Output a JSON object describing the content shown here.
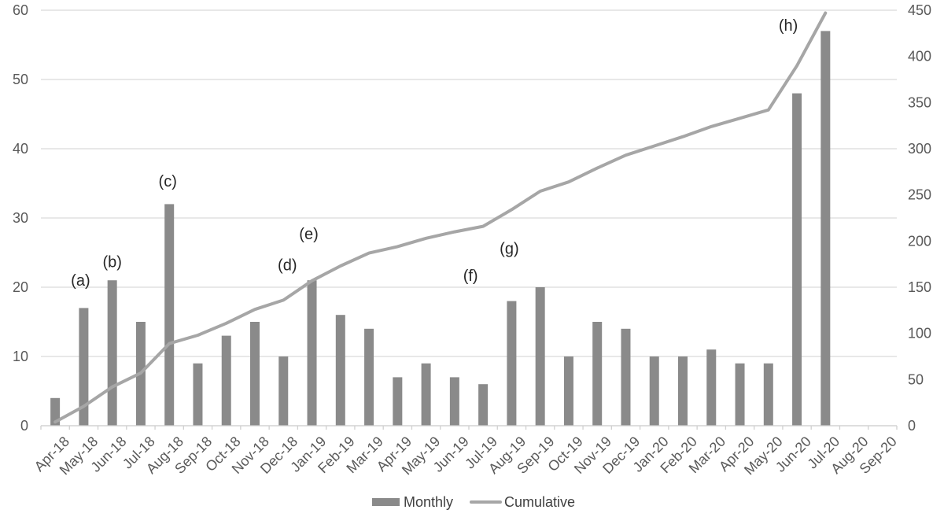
{
  "chart_data": {
    "type": "combo-bar-line",
    "title": "",
    "xlabel": "",
    "ylabel_left": "",
    "ylabel_right": "",
    "grid": true,
    "legend_position": "bottom-center",
    "categories": [
      "Apr-18",
      "May-18",
      "Jun-18",
      "Jul-18",
      "Aug-18",
      "Sep-18",
      "Oct-18",
      "Nov-18",
      "Dec-18",
      "Jan-19",
      "Feb-19",
      "Mar-19",
      "Apr-19",
      "May-19",
      "Jun-19",
      "Jul-19",
      "Aug-19",
      "Sep-19",
      "Oct-19",
      "Nov-19",
      "Dec-19",
      "Jan-20",
      "Feb-20",
      "Mar-20",
      "Apr-20",
      "May-20",
      "Jun-20",
      "Jul-20",
      "Aug-20",
      "Sep-20"
    ],
    "series": [
      {
        "name": "Monthly",
        "type": "bar",
        "axis": "left",
        "values": [
          4,
          17,
          21,
          15,
          32,
          9,
          13,
          15,
          10,
          21,
          16,
          14,
          7,
          9,
          7,
          6,
          18,
          20,
          10,
          15,
          14,
          10,
          10,
          11,
          9,
          9,
          48,
          57,
          null,
          null
        ]
      },
      {
        "name": "Cumulative",
        "type": "line",
        "axis": "right",
        "values": [
          4,
          21,
          42,
          57,
          89,
          98,
          111,
          126,
          136,
          157,
          173,
          187,
          194,
          203,
          210,
          216,
          234,
          254,
          264,
          279,
          293,
          303,
          313,
          324,
          333,
          342,
          390,
          447
        ]
      }
    ],
    "left_axis": {
      "min": 0,
      "max": 60,
      "step": 10,
      "ticks": [
        "0",
        "10",
        "20",
        "30",
        "40",
        "50",
        "60"
      ]
    },
    "right_axis": {
      "min": 0,
      "max": 450,
      "step": 50,
      "ticks": [
        "0",
        "50",
        "100",
        "150",
        "200",
        "250",
        "300",
        "350",
        "400",
        "450"
      ]
    },
    "annotations": [
      {
        "label": "(a)",
        "category": "May-18",
        "index": 1,
        "value": 20.9,
        "dx": -4
      },
      {
        "label": "(b)",
        "category": "Jun-18",
        "index": 2,
        "value": 23.6,
        "dx": 0
      },
      {
        "label": "(c)",
        "category": "Aug-18",
        "index": 4,
        "value": 35.2,
        "dx": -2
      },
      {
        "label": "(d)",
        "category": "Dec-18",
        "index": 8,
        "value": 23.1,
        "dx": 5
      },
      {
        "label": "(e)",
        "category": "Jan-19",
        "index": 9,
        "value": 27.6,
        "dx": -4
      },
      {
        "label": "(f)",
        "category": "Jul-19",
        "index": 15,
        "value": 21.6,
        "dx": -16
      },
      {
        "label": "(g)",
        "category": "Aug-19",
        "index": 16,
        "value": 25.5,
        "dx": -3
      },
      {
        "label": "(h)",
        "category": "Jun-20",
        "index": 26,
        "value": 57.7,
        "dx": -11
      }
    ],
    "legend": [
      {
        "label": "Monthly",
        "swatch": "bar"
      },
      {
        "label": "Cumulative",
        "swatch": "line"
      }
    ]
  },
  "colors": {
    "bar": "#8a8a8a",
    "line": "#a6a6a6",
    "grid": "#d9d9d9",
    "axis_line": "#d0d0d0",
    "axis_text": "#595959",
    "annotation_text": "#262626",
    "legend_text": "#404040",
    "background": "#ffffff"
  }
}
